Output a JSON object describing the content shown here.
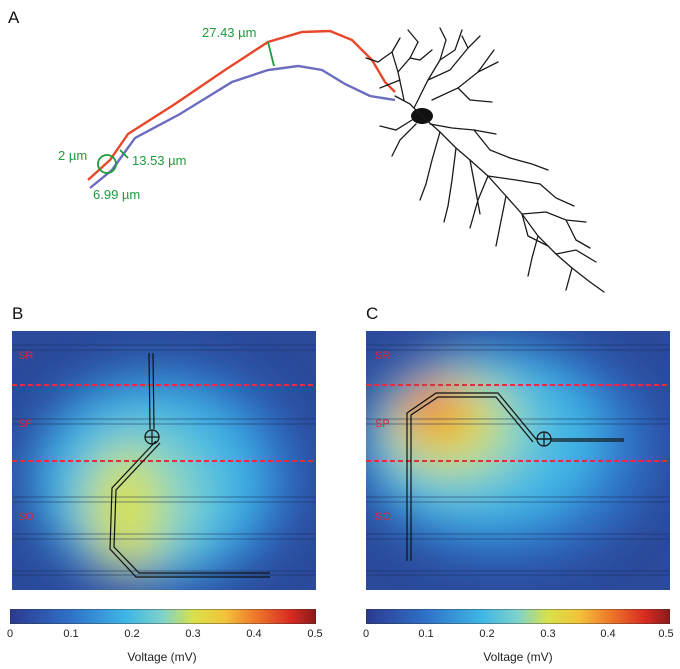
{
  "panels": {
    "a": {
      "letter": "A"
    },
    "b": {
      "letter": "B"
    },
    "c": {
      "letter": "C"
    }
  },
  "measurements": {
    "top_width": "27.43 µm",
    "circle_diameter": "2 µm",
    "lower_width": "13.53 µm",
    "tip_width": "6.99 µm"
  },
  "layers": {
    "b": {
      "sr": "SR",
      "sp": "SP",
      "so": "SO"
    },
    "c": {
      "sr": "SR",
      "sp": "SP",
      "so": "SO"
    }
  },
  "colorbar": {
    "label": "Voltage (mV)",
    "ticks": [
      "0",
      "0.1",
      "0.2",
      "0.3",
      "0.4",
      "0.5"
    ],
    "range": [
      0,
      0.5
    ],
    "colormap": [
      "#2b3a8f",
      "#2f72c9",
      "#3fb6e6",
      "#7fd3c9",
      "#d8e14a",
      "#f2c43a",
      "#ef7a2a",
      "#d62a22",
      "#8a1a1a"
    ]
  },
  "colors": {
    "measurement": "#1f9a3c",
    "layer_label": "#d9263a",
    "dendrite_upper": "#e8472a",
    "dendrite_lower": "#6b6bbf"
  }
}
